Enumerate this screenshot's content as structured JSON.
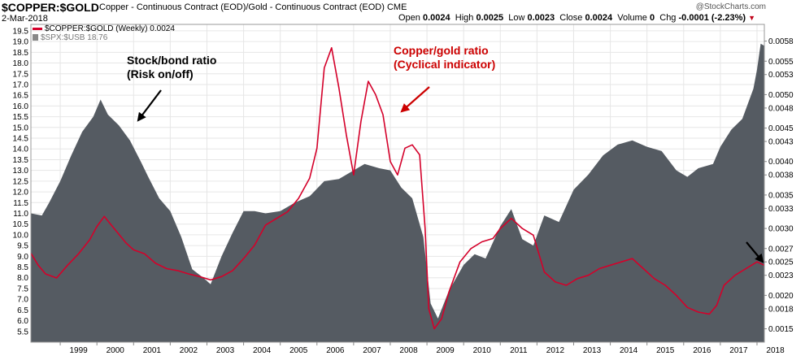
{
  "header": {
    "symbol": "$COPPER:$GOLD",
    "description": "Copper - Continuous Contract (EOD)/Gold - Continuous Contract (EOD)",
    "exchange": "CME",
    "date": "2-Mar-2018",
    "open_label": "Open",
    "open": "0.0024",
    "high_label": "High",
    "high": "0.0025",
    "low_label": "Low",
    "low": "0.0023",
    "close_label": "Close",
    "close": "0.0024",
    "volume_label": "Volume",
    "volume": "0",
    "chg_label": "Chg",
    "chg": "-0.0001 (-2.23%)",
    "brand": "@StockCharts.com"
  },
  "legend": {
    "series1": "$COPPER:$GOLD (Weekly) 0.0024",
    "series2": "$SPX:$USB 18.76"
  },
  "colors": {
    "copper_gold": "#d4002a",
    "spx_usb": "#555b62",
    "arrow": "#000000",
    "annotation_red": "#cc0000"
  },
  "chart_data": {
    "type": "area",
    "x_ticks": [
      "1999",
      "2000",
      "2001",
      "2002",
      "2003",
      "2004",
      "2005",
      "2006",
      "2007",
      "2008",
      "2009",
      "2010",
      "2011",
      "2012",
      "2013",
      "2014",
      "2015",
      "2016",
      "2017",
      "2018"
    ],
    "x_range": [
      1998.2,
      2018.2
    ],
    "left_axis": {
      "ticks": [
        "5.5",
        "6.0",
        "6.5",
        "7.0",
        "7.5",
        "8.0",
        "8.5",
        "9.0",
        "9.5",
        "10.0",
        "10.5",
        "11.0",
        "11.5",
        "12.0",
        "12.5",
        "13.0",
        "13.5",
        "14.0",
        "14.5",
        "15.0",
        "15.5",
        "16.0",
        "16.5",
        "17.0",
        "17.5",
        "18.0",
        "18.5",
        "19.0",
        "19.5"
      ],
      "range": [
        5.0,
        19.8
      ]
    },
    "right_axis": {
      "ticks": [
        "0.0015",
        "0.0018",
        "0.0020",
        "0.0023",
        "0.0025",
        "0.0027",
        "0.0030",
        "0.0033",
        "0.0035",
        "0.0038",
        "0.0040",
        "0.0043",
        "0.0045",
        "0.0048",
        "0.0050",
        "0.0053",
        "0.0055",
        "0.0058"
      ],
      "range": [
        0.0013,
        0.00605
      ]
    },
    "grid": true,
    "series": [
      {
        "name": "$SPX:$USB",
        "axis": "left",
        "style": "area",
        "x": [
          1998.2,
          1998.5,
          1998.7,
          1999.0,
          1999.3,
          1999.6,
          1999.9,
          2000.1,
          2000.3,
          2000.6,
          2000.9,
          2001.2,
          2001.4,
          2001.7,
          2002.0,
          2002.3,
          2002.6,
          2002.9,
          2003.1,
          2003.4,
          2003.7,
          2004.0,
          2004.3,
          2004.6,
          2005.0,
          2005.4,
          2005.8,
          2006.2,
          2006.6,
          2007.0,
          2007.3,
          2007.7,
          2008.0,
          2008.3,
          2008.6,
          2008.9,
          2009.1,
          2009.3,
          2009.6,
          2010.0,
          2010.3,
          2010.6,
          2011.0,
          2011.3,
          2011.6,
          2011.9,
          2012.2,
          2012.6,
          2013.0,
          2013.4,
          2013.8,
          2014.2,
          2014.6,
          2015.0,
          2015.4,
          2015.8,
          2016.1,
          2016.4,
          2016.8,
          2017.0,
          2017.3,
          2017.6,
          2017.9,
          2018.0,
          2018.1,
          2018.2
        ],
        "values": [
          11.0,
          10.9,
          11.5,
          12.5,
          13.7,
          14.8,
          15.5,
          16.3,
          15.6,
          15.1,
          14.4,
          13.4,
          12.7,
          11.7,
          11.1,
          9.9,
          8.4,
          8.0,
          7.7,
          9.0,
          10.1,
          11.1,
          11.1,
          11.0,
          11.1,
          11.5,
          11.8,
          12.5,
          12.6,
          13.0,
          13.3,
          13.1,
          13.0,
          12.2,
          11.7,
          9.9,
          6.8,
          6.1,
          7.4,
          8.6,
          9.1,
          8.9,
          10.4,
          11.2,
          9.8,
          9.5,
          10.9,
          10.6,
          12.1,
          12.8,
          13.7,
          14.2,
          14.4,
          14.1,
          13.9,
          13.0,
          12.7,
          13.1,
          13.3,
          14.1,
          14.9,
          15.4,
          16.8,
          17.7,
          18.9,
          18.8
        ]
      },
      {
        "name": "$COPPER:$GOLD",
        "axis": "right",
        "style": "line",
        "x": [
          1998.2,
          1998.4,
          1998.6,
          1998.9,
          1999.2,
          1999.5,
          1999.8,
          2000.0,
          2000.2,
          2000.5,
          2000.8,
          2001.0,
          2001.3,
          2001.6,
          2001.9,
          2002.2,
          2002.5,
          2002.8,
          2003.1,
          2003.4,
          2003.7,
          2004.0,
          2004.3,
          2004.6,
          2004.9,
          2005.2,
          2005.5,
          2005.8,
          2006.0,
          2006.2,
          2006.4,
          2006.6,
          2006.8,
          2007.0,
          2007.2,
          2007.4,
          2007.6,
          2007.8,
          2008.0,
          2008.2,
          2008.4,
          2008.6,
          2008.8,
          2008.95,
          2009.05,
          2009.2,
          2009.4,
          2009.6,
          2009.9,
          2010.2,
          2010.5,
          2010.8,
          2011.0,
          2011.3,
          2011.6,
          2011.9,
          2012.2,
          2012.5,
          2012.8,
          2013.1,
          2013.4,
          2013.7,
          2014.0,
          2014.3,
          2014.6,
          2014.9,
          2015.2,
          2015.5,
          2015.8,
          2016.1,
          2016.4,
          2016.7,
          2016.9,
          2017.1,
          2017.4,
          2017.7,
          2018.0,
          2018.2
        ],
        "values": [
          0.00263,
          0.00245,
          0.00232,
          0.00226,
          0.00245,
          0.00262,
          0.00283,
          0.00303,
          0.00318,
          0.00298,
          0.00278,
          0.00268,
          0.00262,
          0.00248,
          0.0024,
          0.00237,
          0.00232,
          0.00228,
          0.00223,
          0.00228,
          0.00237,
          0.00255,
          0.00275,
          0.00305,
          0.00315,
          0.00325,
          0.00345,
          0.00375,
          0.0042,
          0.0054,
          0.0057,
          0.0051,
          0.0044,
          0.0038,
          0.0046,
          0.0052,
          0.005,
          0.0047,
          0.004,
          0.0038,
          0.0042,
          0.00425,
          0.0041,
          0.003,
          0.0018,
          0.0015,
          0.00165,
          0.00205,
          0.0025,
          0.0027,
          0.0028,
          0.00285,
          0.003,
          0.00315,
          0.003,
          0.0029,
          0.00235,
          0.0022,
          0.00215,
          0.00225,
          0.0023,
          0.0024,
          0.00245,
          0.0025,
          0.00255,
          0.0024,
          0.00225,
          0.00215,
          0.002,
          0.00182,
          0.00175,
          0.00172,
          0.00185,
          0.00215,
          0.0023,
          0.0024,
          0.0025,
          0.00245
        ]
      }
    ],
    "annotations": [
      {
        "text_line1": "Stock/bond ratio",
        "text_line2": "(Risk on/off)",
        "color": "black"
      },
      {
        "text_line1": "Copper/gold ratio",
        "text_line2": "(Cyclical indicator)",
        "color": "red"
      }
    ]
  }
}
